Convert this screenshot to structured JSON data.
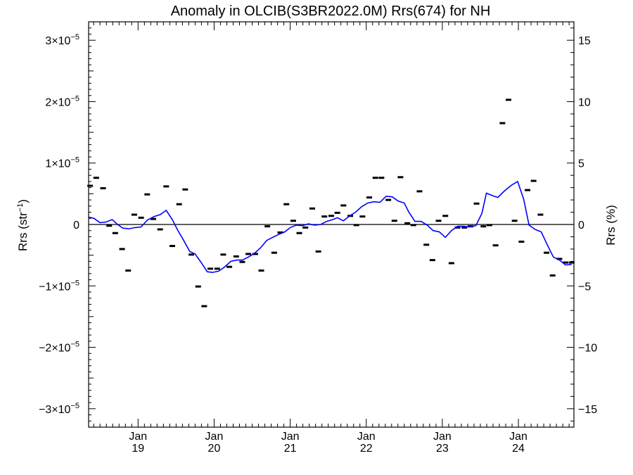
{
  "chart_data": {
    "type": "line",
    "title": "Anomaly in OLCIB(S3BR2022.0M) Rrs(674) for NH",
    "ylabel_left": {
      "base": "Rrs (str",
      "exponent": "−1",
      "close": ")"
    },
    "ylabel_right": "Rrs (%)",
    "ylim_left": [
      -3.3e-05,
      3.3e-05
    ],
    "ylim_right": [
      -16.5,
      16.5
    ],
    "xlim": [
      2018.35,
      2024.73
    ],
    "x_ticks": [
      {
        "x": 2019.0,
        "month": "Jan",
        "year": "19"
      },
      {
        "x": 2020.0,
        "month": "Jan",
        "year": "20"
      },
      {
        "x": 2021.0,
        "month": "Jan",
        "year": "21"
      },
      {
        "x": 2022.0,
        "month": "Jan",
        "year": "22"
      },
      {
        "x": 2023.0,
        "month": "Jan",
        "year": "23"
      },
      {
        "x": 2024.0,
        "month": "Jan",
        "year": "24"
      }
    ],
    "y_ticks_left": [
      {
        "value": 3e-05,
        "mantissa": "3",
        "times": "×10",
        "exp": "−5"
      },
      {
        "value": 2e-05,
        "mantissa": "2",
        "times": "×10",
        "exp": "−5"
      },
      {
        "value": 1e-05,
        "mantissa": "1",
        "times": "×10",
        "exp": "−5"
      },
      {
        "value": 0,
        "mantissa": "0",
        "times": "",
        "exp": ""
      },
      {
        "value": -1e-05,
        "mantissa": "−1",
        "times": "×10",
        "exp": "−5"
      },
      {
        "value": -2e-05,
        "mantissa": "−2",
        "times": "×10",
        "exp": "−5"
      },
      {
        "value": -3e-05,
        "mantissa": "−3",
        "times": "×10",
        "exp": "−5"
      }
    ],
    "y_ticks_right": [
      {
        "value": 15,
        "label": "15"
      },
      {
        "value": 10,
        "label": "10"
      },
      {
        "value": 5,
        "label": "5"
      },
      {
        "value": 0,
        "label": "0"
      },
      {
        "value": -5,
        "label": "−5"
      },
      {
        "value": -10,
        "label": "−10"
      },
      {
        "value": -15,
        "label": "−15"
      }
    ],
    "zero_line": 0,
    "colors": {
      "line": "#0000ff",
      "markers": "#000000",
      "axes": "#000000"
    },
    "series": [
      {
        "type": "scatter",
        "marker": "dash",
        "units": "str^-1",
        "points": [
          [
            2018.37,
            6.3e-06
          ],
          [
            2018.45,
            7.6e-06
          ],
          [
            2018.54,
            5.9e-06
          ],
          [
            2018.62,
            -2e-07
          ],
          [
            2018.7,
            -1.4e-06
          ],
          [
            2018.79,
            -4e-06
          ],
          [
            2018.87,
            -7.5e-06
          ],
          [
            2018.95,
            1.6e-06
          ],
          [
            2019.04,
            1.1e-06
          ],
          [
            2019.12,
            4.9e-06
          ],
          [
            2019.2,
            9e-07
          ],
          [
            2019.29,
            -8e-07
          ],
          [
            2019.37,
            6.2e-06
          ],
          [
            2019.45,
            -3.5e-06
          ],
          [
            2019.54,
            3.3e-06
          ],
          [
            2019.62,
            5.7e-06
          ],
          [
            2019.7,
            -4.9e-06
          ],
          [
            2019.79,
            -1.01e-05
          ],
          [
            2019.87,
            -1.33e-05
          ],
          [
            2019.95,
            -7.2e-06
          ],
          [
            2020.04,
            -7.2e-06
          ],
          [
            2020.12,
            -4.9e-06
          ],
          [
            2020.2,
            -6.9e-06
          ],
          [
            2020.29,
            -5.2e-06
          ],
          [
            2020.37,
            -6.1e-06
          ],
          [
            2020.45,
            -4.8e-06
          ],
          [
            2020.54,
            -4.8e-06
          ],
          [
            2020.62,
            -7.5e-06
          ],
          [
            2020.7,
            -3e-07
          ],
          [
            2020.79,
            -4.6e-06
          ],
          [
            2020.87,
            -1.3e-06
          ],
          [
            2020.95,
            3.3e-06
          ],
          [
            2021.04,
            6e-07
          ],
          [
            2021.12,
            -1.4e-06
          ],
          [
            2021.2,
            -5e-07
          ],
          [
            2021.29,
            2.6e-06
          ],
          [
            2021.37,
            -4.4e-06
          ],
          [
            2021.45,
            1.3e-06
          ],
          [
            2021.54,
            1.4e-06
          ],
          [
            2021.62,
            1.9e-06
          ],
          [
            2021.7,
            3.1e-06
          ],
          [
            2021.79,
            1.4e-06
          ],
          [
            2021.87,
            -1e-07
          ],
          [
            2021.95,
            1.3e-06
          ],
          [
            2022.04,
            4.4e-06
          ],
          [
            2022.12,
            7.6e-06
          ],
          [
            2022.2,
            7.6e-06
          ],
          [
            2022.29,
            4e-06
          ],
          [
            2022.37,
            6e-07
          ],
          [
            2022.45,
            7.7e-06
          ],
          [
            2022.54,
            2e-07
          ],
          [
            2022.62,
            -1e-07
          ],
          [
            2022.7,
            5.4e-06
          ],
          [
            2022.79,
            -3.3e-06
          ],
          [
            2022.87,
            -5.8e-06
          ],
          [
            2022.95,
            6e-07
          ],
          [
            2023.04,
            1.4e-06
          ],
          [
            2023.12,
            -6.3e-06
          ],
          [
            2023.2,
            -5e-07
          ],
          [
            2023.29,
            -5e-07
          ],
          [
            2023.37,
            -3e-07
          ],
          [
            2023.45,
            3.4e-06
          ],
          [
            2023.54,
            -3e-07
          ],
          [
            2023.62,
            -1e-07
          ],
          [
            2023.7,
            -3.4e-06
          ],
          [
            2023.79,
            1.65e-05
          ],
          [
            2023.87,
            2.03e-05
          ],
          [
            2023.95,
            6e-07
          ],
          [
            2024.04,
            -2.8e-06
          ],
          [
            2024.12,
            5.6e-06
          ],
          [
            2024.2,
            7.1e-06
          ],
          [
            2024.29,
            1.6e-06
          ],
          [
            2024.37,
            -4.6e-06
          ],
          [
            2024.45,
            -8.3e-06
          ],
          [
            2024.54,
            -5.6e-06
          ],
          [
            2024.62,
            -6.2e-06
          ],
          [
            2024.7,
            -6.2e-06
          ]
        ]
      },
      {
        "type": "line",
        "units": "str^-1",
        "points": [
          [
            2018.35,
            1.2e-06
          ],
          [
            2018.42,
            1e-06
          ],
          [
            2018.5,
            3e-07
          ],
          [
            2018.58,
            4e-07
          ],
          [
            2018.66,
            8e-07
          ],
          [
            2018.73,
            0.0
          ],
          [
            2018.8,
            -6e-07
          ],
          [
            2018.88,
            -7e-07
          ],
          [
            2018.96,
            -5e-07
          ],
          [
            2019.04,
            -4e-07
          ],
          [
            2019.12,
            7e-07
          ],
          [
            2019.21,
            1.3e-06
          ],
          [
            2019.29,
            1.6e-06
          ],
          [
            2019.37,
            2.3e-06
          ],
          [
            2019.45,
            8e-07
          ],
          [
            2019.52,
            -9e-07
          ],
          [
            2019.6,
            -2.6e-06
          ],
          [
            2019.68,
            -4.4e-06
          ],
          [
            2019.75,
            -4.8e-06
          ],
          [
            2019.83,
            -6.2e-06
          ],
          [
            2019.91,
            -7.7e-06
          ],
          [
            2019.98,
            -7.8e-06
          ],
          [
            2020.06,
            -7.6e-06
          ],
          [
            2020.14,
            -6.9e-06
          ],
          [
            2020.22,
            -6e-06
          ],
          [
            2020.3,
            -5.8e-06
          ],
          [
            2020.37,
            -5.8e-06
          ],
          [
            2020.45,
            -5.3e-06
          ],
          [
            2020.53,
            -4.7e-06
          ],
          [
            2020.61,
            -3.8e-06
          ],
          [
            2020.69,
            -2.6e-06
          ],
          [
            2020.77,
            -2.1e-06
          ],
          [
            2020.85,
            -1.6e-06
          ],
          [
            2020.93,
            -1.2e-06
          ],
          [
            2021.0,
            -5e-07
          ],
          [
            2021.08,
            -1e-07
          ],
          [
            2021.16,
            -2e-07
          ],
          [
            2021.24,
            1e-07
          ],
          [
            2021.32,
            -1e-07
          ],
          [
            2021.4,
            0.0
          ],
          [
            2021.48,
            5e-07
          ],
          [
            2021.56,
            8e-07
          ],
          [
            2021.62,
            1.1e-06
          ],
          [
            2021.7,
            6e-07
          ],
          [
            2021.78,
            1.4e-06
          ],
          [
            2021.86,
            2e-06
          ],
          [
            2021.94,
            2.9e-06
          ],
          [
            2022.02,
            3.5e-06
          ],
          [
            2022.1,
            3.7e-06
          ],
          [
            2022.18,
            3.6e-06
          ],
          [
            2022.26,
            4.6e-06
          ],
          [
            2022.34,
            4.5e-06
          ],
          [
            2022.42,
            3.8e-06
          ],
          [
            2022.5,
            3.5e-06
          ],
          [
            2022.56,
            2e-06
          ],
          [
            2022.64,
            5e-07
          ],
          [
            2022.72,
            5e-07
          ],
          [
            2022.8,
            -1e-07
          ],
          [
            2022.88,
            -1e-06
          ],
          [
            2022.96,
            -1.2e-06
          ],
          [
            2023.04,
            -2.1e-06
          ],
          [
            2023.12,
            -1e-06
          ],
          [
            2023.2,
            -3e-07
          ],
          [
            2023.28,
            -3e-07
          ],
          [
            2023.36,
            -4e-07
          ],
          [
            2023.44,
            -2e-07
          ],
          [
            2023.52,
            1.8e-06
          ],
          [
            2023.58,
            5.1e-06
          ],
          [
            2023.66,
            4.7e-06
          ],
          [
            2023.73,
            4.4e-06
          ],
          [
            2023.82,
            5.5e-06
          ],
          [
            2023.91,
            6.4e-06
          ],
          [
            2023.99,
            7e-06
          ],
          [
            2024.07,
            4.1e-06
          ],
          [
            2024.14,
            -1e-07
          ],
          [
            2024.22,
            -8e-07
          ],
          [
            2024.3,
            -1.2e-06
          ],
          [
            2024.38,
            -3.3e-06
          ],
          [
            2024.46,
            -5.3e-06
          ],
          [
            2024.54,
            -5.8e-06
          ],
          [
            2024.62,
            -6.6e-06
          ],
          [
            2024.7,
            -6.5e-06
          ]
        ]
      }
    ]
  }
}
